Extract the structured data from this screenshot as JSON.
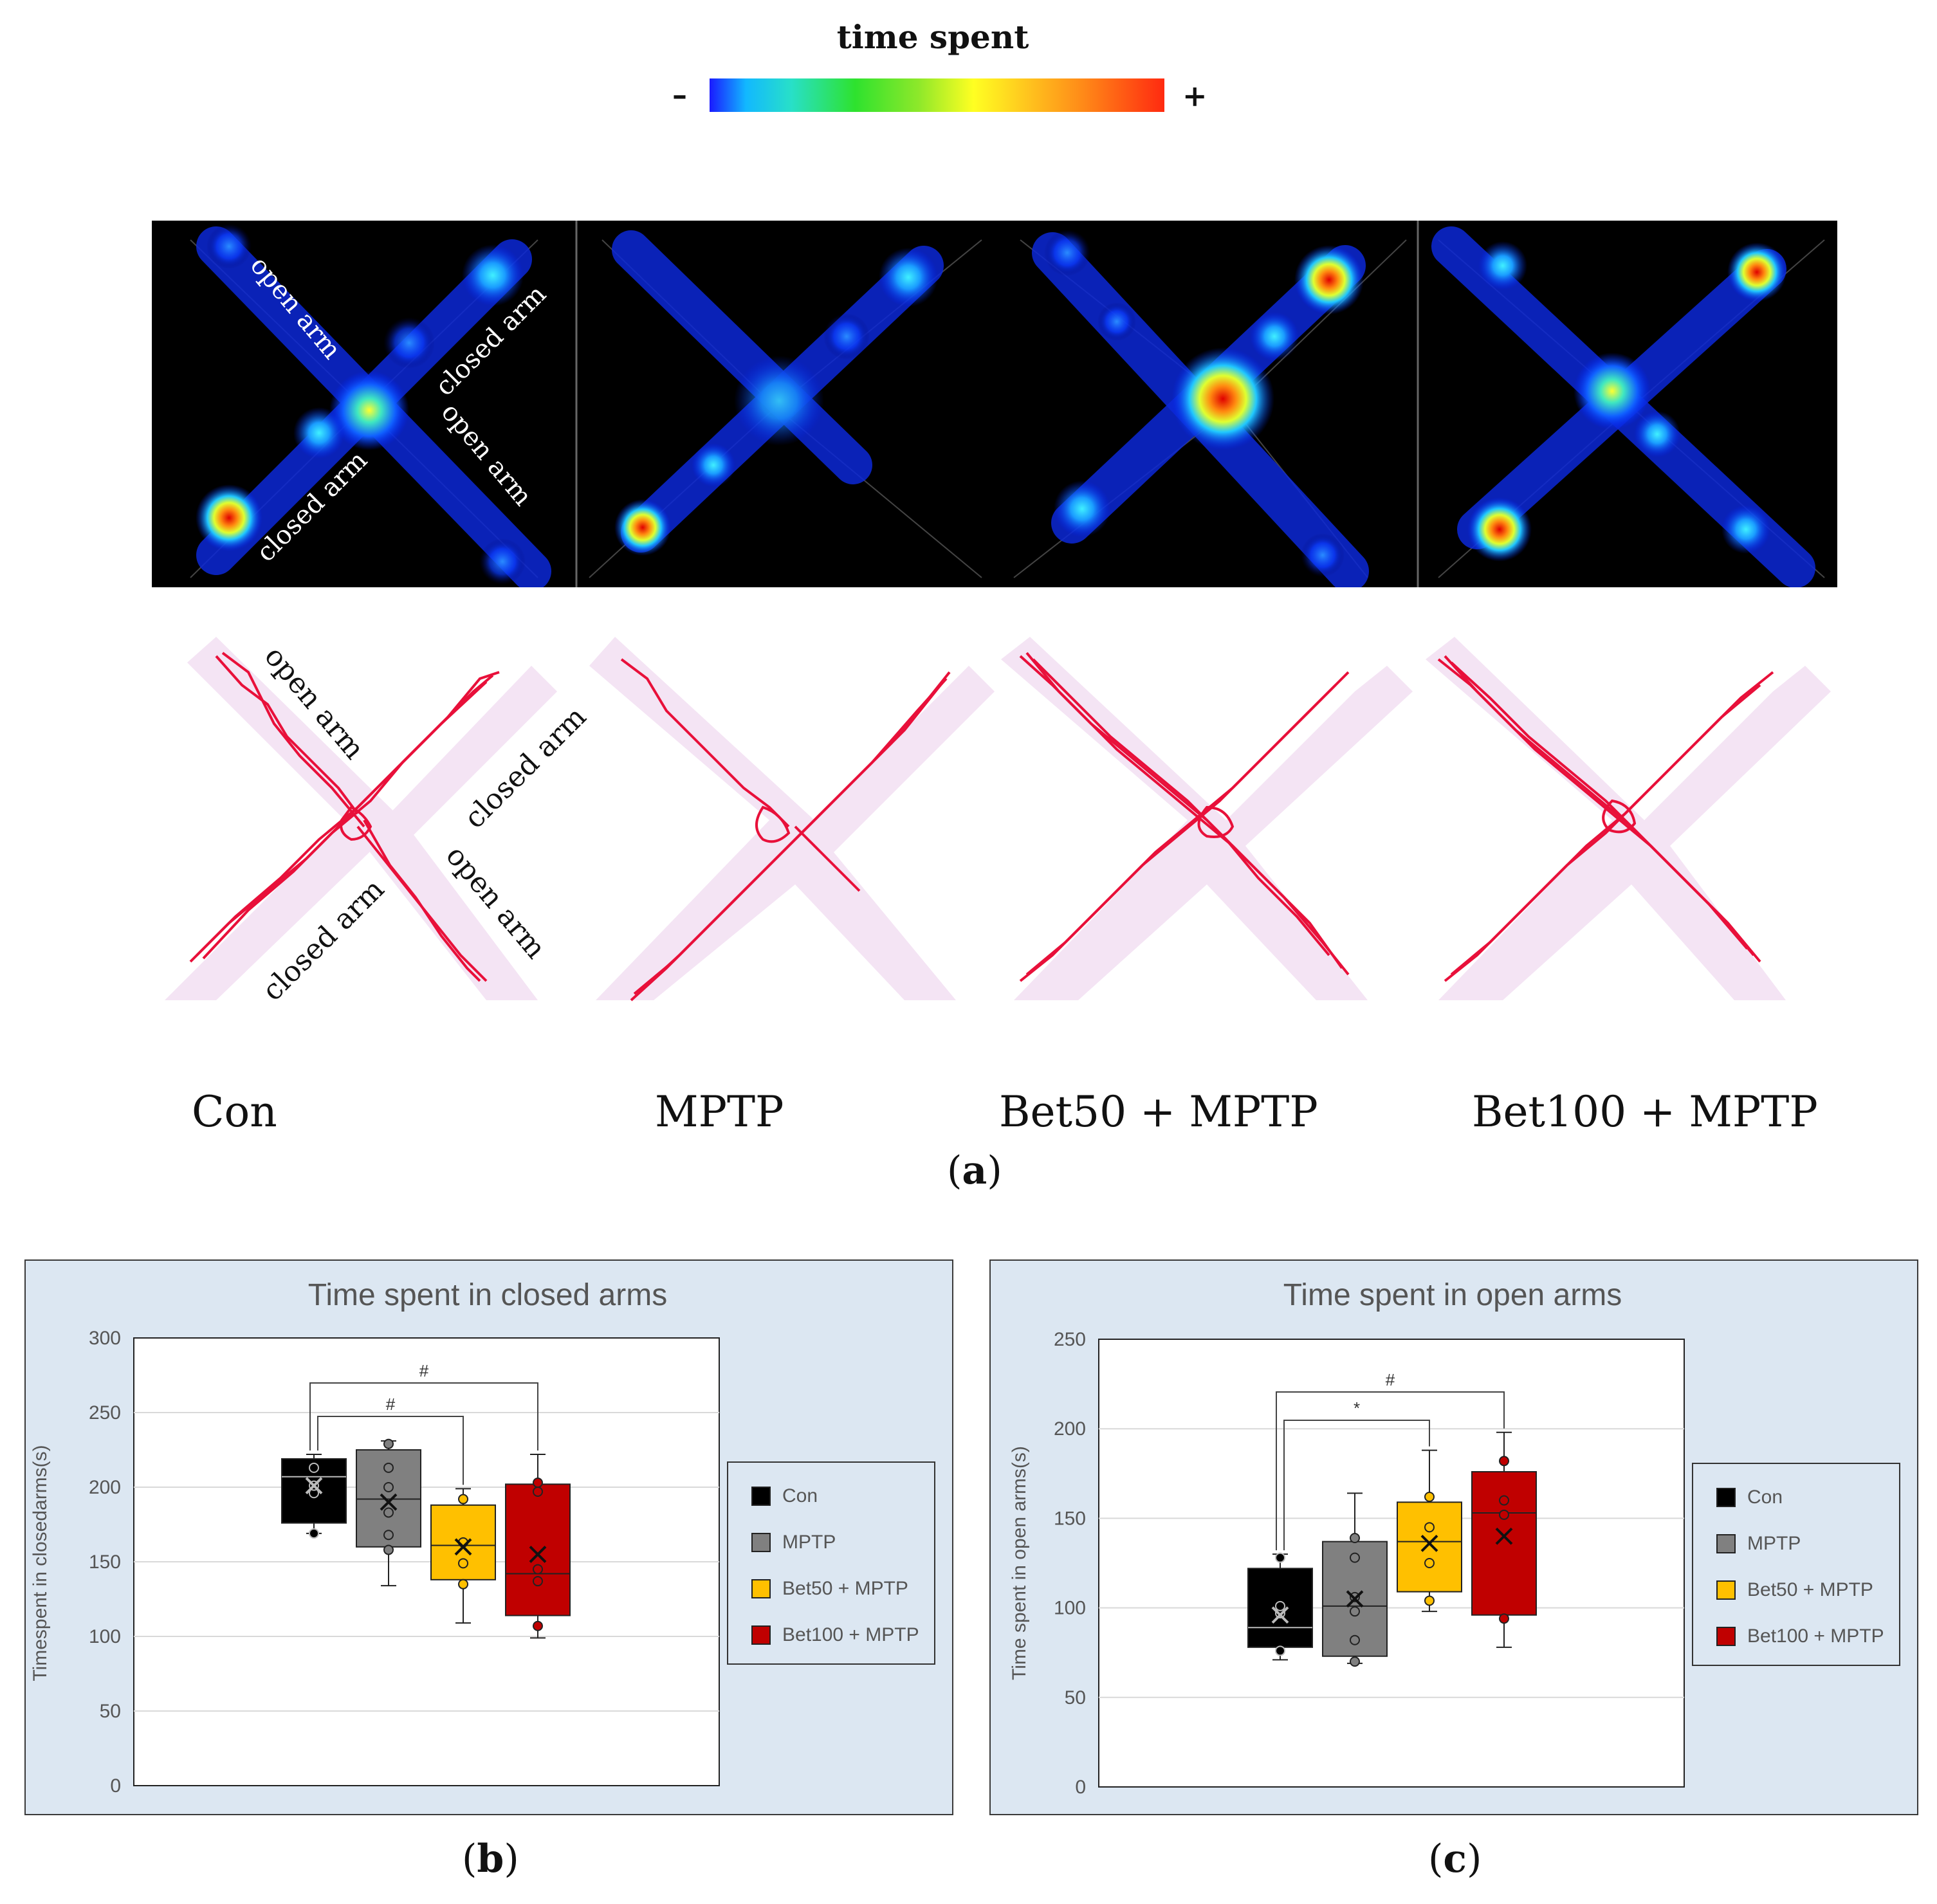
{
  "colorbar": {
    "title": "time spent",
    "min_label": "–",
    "max_label": "+"
  },
  "maze_annotations": {
    "open_arm": "open arm",
    "closed_arm": "closed arm"
  },
  "groups": [
    "Con",
    "MPTP",
    "Bet50 + MPTP",
    "Bet100 + MPTP"
  ],
  "panels": {
    "a": "a",
    "b": "b",
    "c": "c"
  },
  "colors": {
    "Con": "#000000",
    "MPTP": "#808080",
    "Bet50 + MPTP": "#ffc000",
    "Bet100 + MPTP": "#c00000",
    "heatmap_bg": "#000000",
    "track": "#e8103a",
    "maze_fill": "#f4e4f4",
    "chart_bg": "#dce7f2"
  },
  "chart_data": [
    {
      "type": "box",
      "title": "Time spent in closed arms",
      "ylabel": "Timespent in closedarms(s)",
      "ylim": [
        0,
        300
      ],
      "yticks": [
        0,
        50,
        100,
        150,
        200,
        250,
        300
      ],
      "legend": [
        "Con",
        "MPTP",
        "Bet50 + MPTP",
        "Bet100 + MPTP"
      ],
      "legend_position": "right",
      "series": [
        {
          "name": "Con",
          "min": 169,
          "q1": 176,
          "median": 207,
          "q3": 219,
          "max": 222,
          "mean": 201,
          "points": [
            169,
            196,
            201,
            213
          ]
        },
        {
          "name": "MPTP",
          "min": 134,
          "q1": 160,
          "median": 192,
          "q3": 225,
          "max": 231,
          "mean": 190,
          "points": [
            158,
            168,
            183,
            200,
            213,
            229
          ]
        },
        {
          "name": "Bet50 + MPTP",
          "min": 109,
          "q1": 138,
          "median": 161,
          "q3": 188,
          "max": 199,
          "mean": 160,
          "points": [
            135,
            149,
            163,
            192
          ]
        },
        {
          "name": "Bet100 + MPTP",
          "min": 99,
          "q1": 114,
          "median": 142,
          "q3": 202,
          "max": 222,
          "mean": 155,
          "points": [
            107,
            137,
            145,
            197,
            203
          ]
        }
      ],
      "annotations": [
        {
          "from": "Con",
          "to": "Bet100 + MPTP",
          "label": "#"
        },
        {
          "from": "Con",
          "to": "Bet50 + MPTP",
          "label": "#"
        }
      ]
    },
    {
      "type": "box",
      "title": "Time spent in open arms",
      "ylabel": "Time spent in open arms(s)",
      "ylim": [
        0,
        250
      ],
      "yticks": [
        0,
        50,
        100,
        150,
        200,
        250
      ],
      "legend": [
        "Con",
        "MPTP",
        "Bet50 + MPTP",
        "Bet100 + MPTP"
      ],
      "legend_position": "right",
      "series": [
        {
          "name": "Con",
          "min": 71,
          "q1": 78,
          "median": 89,
          "q3": 122,
          "max": 130,
          "mean": 96,
          "points": [
            76,
            97,
            101,
            128
          ]
        },
        {
          "name": "MPTP",
          "min": 69,
          "q1": 73,
          "median": 101,
          "q3": 137,
          "max": 164,
          "mean": 105,
          "points": [
            70,
            82,
            98,
            106,
            128,
            139
          ]
        },
        {
          "name": "Bet50 + MPTP",
          "min": 98,
          "q1": 109,
          "median": 137,
          "q3": 159,
          "max": 188,
          "mean": 136,
          "points": [
            104,
            125,
            145,
            162
          ]
        },
        {
          "name": "Bet100 + MPTP",
          "min": 78,
          "q1": 96,
          "median": 153,
          "q3": 176,
          "max": 198,
          "mean": 140,
          "points": [
            94,
            152,
            160,
            182
          ]
        }
      ],
      "annotations": [
        {
          "from": "Con",
          "to": "Bet100 + MPTP",
          "label": "#"
        },
        {
          "from": "Con",
          "to": "Bet50 + MPTP",
          "label": "*"
        }
      ]
    }
  ]
}
